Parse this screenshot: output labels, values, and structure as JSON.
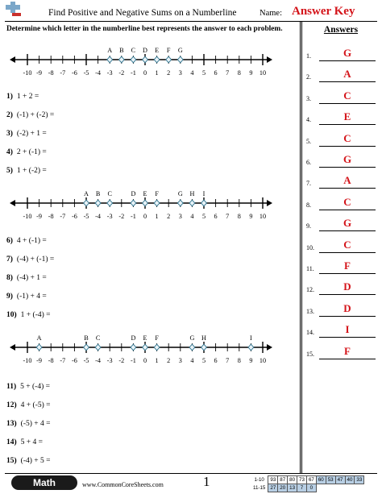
{
  "header": {
    "logo": "plus-minus-logo",
    "title": "Find Positive and Negative Sums on a Numberline",
    "name_label": "Name:",
    "answer_key": "Answer Key",
    "accent_color": "#d4141a"
  },
  "instructions": "Determine which letter in the numberline best represents the answer to each problem.",
  "answers_heading": "Answers",
  "numberline_ticks": [
    "-10",
    "-9",
    "-8",
    "-7",
    "-6",
    "-5",
    "-4",
    "-3",
    "-2",
    "-1",
    "0",
    "1",
    "2",
    "3",
    "4",
    "5",
    "6",
    "7",
    "8",
    "9",
    "10"
  ],
  "numberlines": [
    {
      "points": [
        {
          "letter": "A",
          "value": -3
        },
        {
          "letter": "B",
          "value": -2
        },
        {
          "letter": "C",
          "value": -1
        },
        {
          "letter": "D",
          "value": 0
        },
        {
          "letter": "E",
          "value": 1
        },
        {
          "letter": "F",
          "value": 2
        },
        {
          "letter": "G",
          "value": 3
        }
      ]
    },
    {
      "points": [
        {
          "letter": "A",
          "value": -5
        },
        {
          "letter": "B",
          "value": -4
        },
        {
          "letter": "C",
          "value": -3
        },
        {
          "letter": "D",
          "value": -1
        },
        {
          "letter": "E",
          "value": 0
        },
        {
          "letter": "F",
          "value": 1
        },
        {
          "letter": "G",
          "value": 3
        },
        {
          "letter": "H",
          "value": 4
        },
        {
          "letter": "I",
          "value": 5
        }
      ]
    },
    {
      "points": [
        {
          "letter": "A",
          "value": -9
        },
        {
          "letter": "B",
          "value": -5
        },
        {
          "letter": "C",
          "value": -4
        },
        {
          "letter": "D",
          "value": -1
        },
        {
          "letter": "E",
          "value": 0
        },
        {
          "letter": "F",
          "value": 1
        },
        {
          "letter": "G",
          "value": 4
        },
        {
          "letter": "H",
          "value": 5
        },
        {
          "letter": "I",
          "value": 9
        }
      ]
    }
  ],
  "problems": [
    {
      "num": "1)",
      "text": "1 + 2 ="
    },
    {
      "num": "2)",
      "text": "(-1) + (-2) ="
    },
    {
      "num": "3)",
      "text": "(-2) + 1 ="
    },
    {
      "num": "4)",
      "text": "2 + (-1) ="
    },
    {
      "num": "5)",
      "text": "1 + (-2) ="
    },
    {
      "num": "6)",
      "text": "4 + (-1) ="
    },
    {
      "num": "7)",
      "text": "(-4) + (-1) ="
    },
    {
      "num": "8)",
      "text": "(-4) + 1 ="
    },
    {
      "num": "9)",
      "text": "(-1) + 4 ="
    },
    {
      "num": "10)",
      "text": "1 + (-4) ="
    },
    {
      "num": "11)",
      "text": "5 + (-4) ="
    },
    {
      "num": "12)",
      "text": "4 + (-5) ="
    },
    {
      "num": "13)",
      "text": "(-5) + 4 ="
    },
    {
      "num": "14)",
      "text": "5 + 4 ="
    },
    {
      "num": "15)",
      "text": "(-4) + 5 ="
    }
  ],
  "answers": [
    {
      "num": "1.",
      "value": "G"
    },
    {
      "num": "2.",
      "value": "A"
    },
    {
      "num": "3.",
      "value": "C"
    },
    {
      "num": "4.",
      "value": "E"
    },
    {
      "num": "5.",
      "value": "C"
    },
    {
      "num": "6.",
      "value": "G"
    },
    {
      "num": "7.",
      "value": "A"
    },
    {
      "num": "8.",
      "value": "C"
    },
    {
      "num": "9.",
      "value": "G"
    },
    {
      "num": "10.",
      "value": "C"
    },
    {
      "num": "11.",
      "value": "F"
    },
    {
      "num": "12.",
      "value": "D"
    },
    {
      "num": "13.",
      "value": "D"
    },
    {
      "num": "14.",
      "value": "I"
    },
    {
      "num": "15.",
      "value": "F"
    }
  ],
  "footer": {
    "subject": "Math",
    "site": "www.CommonCoreSheets.com",
    "page": "1",
    "score_rows": [
      {
        "label": "1-10",
        "cells": [
          "93",
          "87",
          "80",
          "73",
          "67",
          "60",
          "53",
          "47",
          "40",
          "33"
        ]
      },
      {
        "label": "11-15",
        "cells": [
          "27",
          "20",
          "13",
          "7",
          "0"
        ]
      }
    ]
  }
}
